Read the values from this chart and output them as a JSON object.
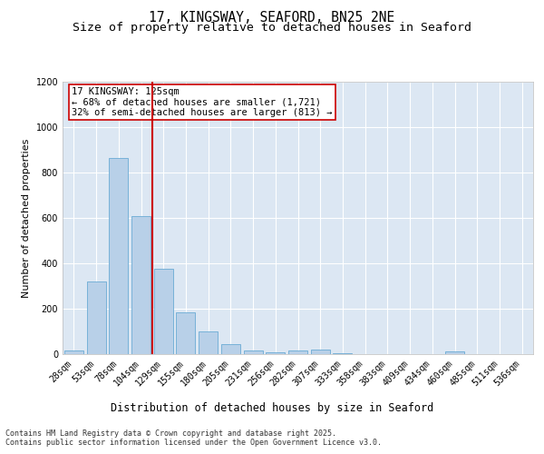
{
  "title": "17, KINGSWAY, SEAFORD, BN25 2NE",
  "subtitle": "Size of property relative to detached houses in Seaford",
  "xlabel": "Distribution of detached houses by size in Seaford",
  "ylabel": "Number of detached properties",
  "categories": [
    "28sqm",
    "53sqm",
    "78sqm",
    "104sqm",
    "129sqm",
    "155sqm",
    "180sqm",
    "205sqm",
    "231sqm",
    "256sqm",
    "282sqm",
    "307sqm",
    "333sqm",
    "358sqm",
    "383sqm",
    "409sqm",
    "434sqm",
    "460sqm",
    "485sqm",
    "511sqm",
    "536sqm"
  ],
  "values": [
    15,
    320,
    865,
    610,
    375,
    185,
    100,
    45,
    15,
    10,
    15,
    20,
    5,
    0,
    0,
    0,
    0,
    12,
    0,
    0,
    0
  ],
  "bar_color": "#b8d0e8",
  "bar_edge_color": "#6aaad4",
  "vline_x": 3.5,
  "vline_color": "#cc0000",
  "annotation_title": "17 KINGSWAY: 125sqm",
  "annotation_line1": "← 68% of detached houses are smaller (1,721)",
  "annotation_line2": "32% of semi-detached houses are larger (813) →",
  "annotation_box_color": "#ffffff",
  "annotation_box_edge": "#cc0000",
  "ylim": [
    0,
    1200
  ],
  "yticks": [
    0,
    200,
    400,
    600,
    800,
    1000,
    1200
  ],
  "plot_bg_color": "#dce7f3",
  "footer_line1": "Contains HM Land Registry data © Crown copyright and database right 2025.",
  "footer_line2": "Contains public sector information licensed under the Open Government Licence v3.0.",
  "title_fontsize": 10.5,
  "subtitle_fontsize": 9.5,
  "xlabel_fontsize": 8.5,
  "ylabel_fontsize": 8,
  "tick_fontsize": 7,
  "annotation_fontsize": 7.5,
  "footer_fontsize": 6
}
